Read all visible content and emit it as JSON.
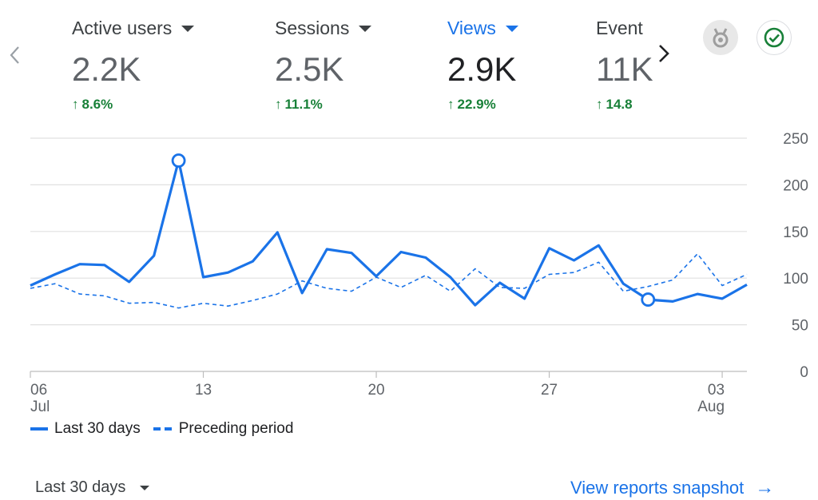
{
  "nav": {
    "prev_icon": "chevron-left-icon",
    "next_icon": "chevron-right-icon"
  },
  "metrics": [
    {
      "label": "Active users",
      "value": "2.2K",
      "change": "8.6%"
    },
    {
      "label": "Sessions",
      "value": "2.5K",
      "change": "11.1%"
    },
    {
      "label": "Views",
      "value": "2.9K",
      "change": "22.9%"
    },
    {
      "label": "Event",
      "value": "11K",
      "change": "14.8"
    }
  ],
  "badges": {
    "insights_icon": "medal-icon",
    "status_icon": "check-circle-icon"
  },
  "colors": {
    "accent": "#1a73e8",
    "positive": "#188038",
    "grid": "#e0e0e0",
    "text": "#3c4043"
  },
  "chart_data": {
    "type": "line",
    "title": "",
    "x_tick_labels": [
      {
        "day": "06",
        "month": "Jul"
      },
      {
        "day": "13",
        "month": ""
      },
      {
        "day": "20",
        "month": ""
      },
      {
        "day": "27",
        "month": ""
      },
      {
        "day": "03",
        "month": "Aug"
      }
    ],
    "x_tick_index": [
      0,
      7,
      14,
      21,
      28
    ],
    "ylim": [
      0,
      250
    ],
    "y_ticks": [
      0,
      50,
      100,
      150,
      200,
      250
    ],
    "series": [
      {
        "name": "Last 30 days",
        "style": "solid",
        "values": [
          92,
          104,
          115,
          114,
          96,
          124,
          226,
          101,
          106,
          118,
          149,
          84,
          131,
          127,
          102,
          128,
          122,
          101,
          71,
          95,
          78,
          132,
          119,
          135,
          94,
          77,
          75,
          83,
          78,
          93
        ],
        "highlight_indices": [
          6,
          25
        ]
      },
      {
        "name": "Preceding period",
        "style": "dashed",
        "values": [
          89,
          94,
          83,
          81,
          73,
          74,
          68,
          73,
          70,
          76,
          83,
          97,
          89,
          86,
          101,
          90,
          103,
          86,
          110,
          90,
          89,
          104,
          106,
          117,
          86,
          91,
          98,
          126,
          92,
          104
        ]
      }
    ],
    "legend_position": "bottom-left"
  },
  "legend": {
    "current": "Last 30 days",
    "previous": "Preceding period"
  },
  "footer": {
    "date_range": "Last 30 days",
    "link_text": "View reports snapshot",
    "link_icon": "arrow-right-icon"
  }
}
